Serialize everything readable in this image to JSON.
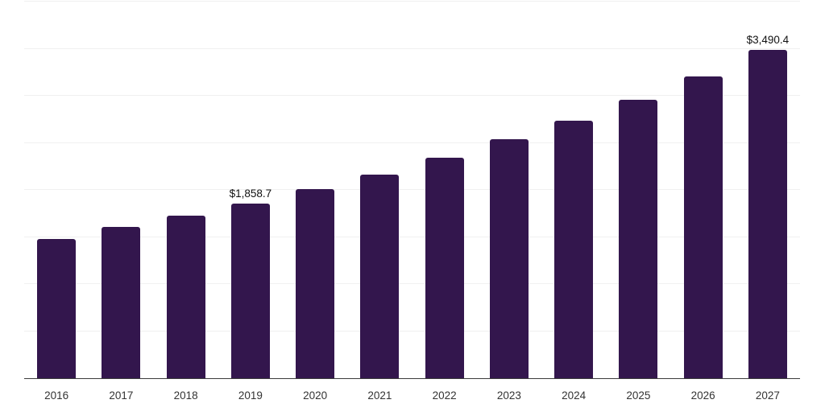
{
  "chart_data": {
    "type": "bar",
    "title": "",
    "xlabel": "",
    "ylabel": "",
    "categories": [
      "2016",
      "2017",
      "2018",
      "2019",
      "2020",
      "2021",
      "2022",
      "2023",
      "2024",
      "2025",
      "2026",
      "2027"
    ],
    "values": [
      1480,
      1610,
      1725,
      1858.7,
      2010,
      2165,
      2340,
      2535,
      2735,
      2960,
      3205,
      3490.4
    ],
    "ylim": [
      0,
      4000
    ],
    "y_gridline_step": 500,
    "grid": true,
    "legend": false,
    "y_tick_labels_visible": false,
    "annotations": [
      {
        "category_index": 3,
        "text": "$1,858.7"
      },
      {
        "category_index": 11,
        "text": "$3,490.4"
      }
    ],
    "colors": {
      "bar": "#33164D",
      "gridline": "#F0F0F0",
      "axis_line": "#3C3C3C",
      "x_label": "#333333",
      "annotation": "#111111",
      "background": "#FFFFFF"
    }
  }
}
